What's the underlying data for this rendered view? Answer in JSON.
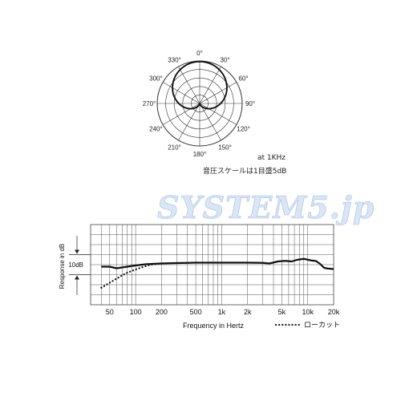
{
  "watermark": "SYSTEM5.jp",
  "chart_data": [
    {
      "type": "polar",
      "angle_labels": [
        "0°",
        "30°",
        "60°",
        "90°",
        "120°",
        "150°",
        "180°",
        "210°",
        "240°",
        "270°",
        "300°",
        "330°"
      ],
      "angles": [
        0,
        30,
        60,
        90,
        120,
        150,
        180,
        210,
        240,
        270,
        300,
        330
      ],
      "scale_rings": 5,
      "pattern": "cardioid",
      "notes": [
        "at 1KHz",
        "音圧スケールは1目盛5dB"
      ]
    },
    {
      "type": "line",
      "xscale": "log",
      "xlim": [
        30,
        20000
      ],
      "xticks": [
        50,
        100,
        200,
        500,
        1000,
        2000,
        5000,
        10000,
        20000
      ],
      "xtick_labels": [
        "50",
        "100",
        "200",
        "500",
        "1k",
        "2k",
        "5k",
        "10k",
        "20k"
      ],
      "xlabel": "Frequency in Hertz",
      "ylabel": "Response in dB",
      "scale_label": "10dB",
      "ylim": [
        -20,
        20
      ],
      "series": [
        {
          "name": "",
          "style": "solid",
          "points": [
            [
              40,
              -1
            ],
            [
              50,
              -1
            ],
            [
              60,
              -1.8
            ],
            [
              80,
              -1
            ],
            [
              100,
              -0.4
            ],
            [
              130,
              0.2
            ],
            [
              200,
              0.6
            ],
            [
              300,
              0.8
            ],
            [
              400,
              0.9
            ],
            [
              500,
              1
            ],
            [
              700,
              1
            ],
            [
              1000,
              1
            ],
            [
              2000,
              1
            ],
            [
              3000,
              0.9
            ],
            [
              3600,
              0.6
            ],
            [
              4500,
              1.6
            ],
            [
              5500,
              1.9
            ],
            [
              6500,
              1.6
            ],
            [
              7500,
              2.4
            ],
            [
              9000,
              2.9
            ],
            [
              11000,
              2.1
            ],
            [
              12500,
              1.8
            ],
            [
              14000,
              0.3
            ],
            [
              15500,
              -1.6
            ],
            [
              17000,
              -1.9
            ],
            [
              20000,
              -2.2
            ]
          ]
        },
        {
          "name": "ローカット",
          "style": "dotted",
          "points": [
            [
              40,
              -11.5
            ],
            [
              50,
              -9
            ],
            [
              60,
              -7
            ],
            [
              70,
              -5.3
            ],
            [
              80,
              -4
            ],
            [
              100,
              -2.4
            ],
            [
              120,
              -1.2
            ],
            [
              150,
              0
            ],
            [
              200,
              0.6
            ]
          ]
        }
      ],
      "legend": "bottom-right"
    }
  ]
}
